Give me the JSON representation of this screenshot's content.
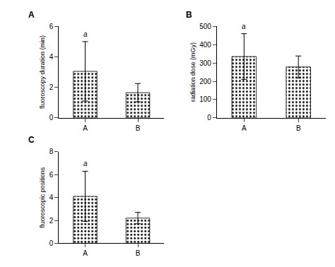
{
  "chart_data": [
    {
      "type": "bar",
      "title": "A",
      "ylabel": "fluoroscopy duration (min)",
      "categories": [
        "A",
        "B"
      ],
      "values": [
        3.05,
        1.65
      ],
      "errors": [
        1.95,
        0.6
      ],
      "annotations": [
        {
          "category": "A",
          "text": "a"
        }
      ],
      "ylim": [
        0,
        6
      ],
      "yticks": [
        0,
        2,
        4,
        6
      ],
      "color": "#d0d0d0",
      "grid": false
    },
    {
      "type": "bar",
      "title": "B",
      "ylabel": "radiation dose (mGy)",
      "categories": [
        "A",
        "B"
      ],
      "values": [
        335,
        278
      ],
      "errors": [
        125,
        60
      ],
      "annotations": [
        {
          "category": "A",
          "text": "a"
        }
      ],
      "ylim": [
        0,
        500
      ],
      "yticks": [
        0,
        100,
        200,
        300,
        400,
        500
      ],
      "color": "#d0d0d0",
      "grid": false
    },
    {
      "type": "bar",
      "title": "C",
      "ylabel": "fluoroscopic positions",
      "categories": [
        "A",
        "B"
      ],
      "values": [
        4.1,
        2.2
      ],
      "errors": [
        2.2,
        0.5
      ],
      "annotations": [
        {
          "category": "A",
          "text": "a"
        }
      ],
      "ylim": [
        0,
        8
      ],
      "yticks": [
        0,
        2,
        4,
        6,
        8
      ],
      "color": "#d0d0d0",
      "grid": false
    }
  ]
}
